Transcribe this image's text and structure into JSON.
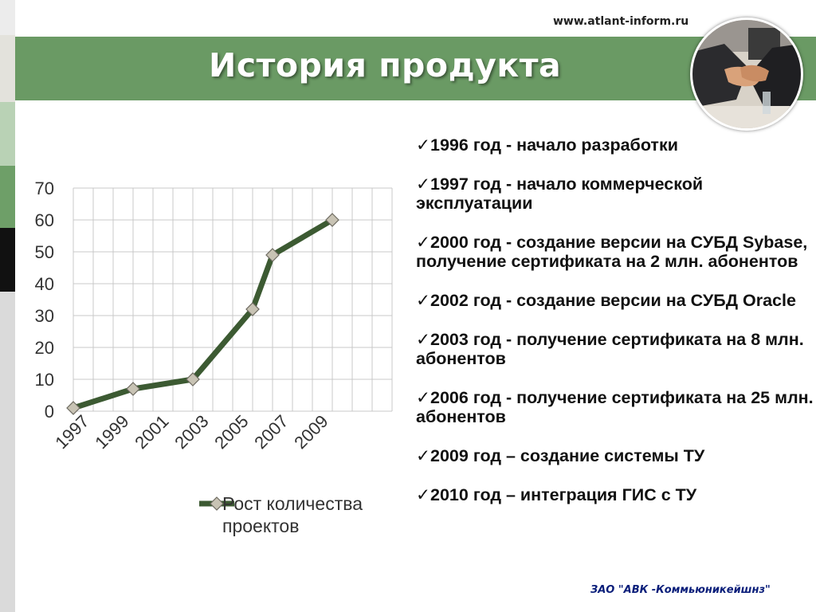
{
  "header": {
    "title": "История продукта",
    "site": "www.atlant-inform.ru"
  },
  "photo": {
    "icon": "handshake-photo"
  },
  "chart_data": {
    "type": "line",
    "x_ticks": [
      "1997",
      "1999",
      "2001",
      "2003",
      "2005",
      "2007",
      "2009"
    ],
    "y_ticks": [
      "0",
      "10",
      "20",
      "30",
      "40",
      "50",
      "60",
      "70"
    ],
    "ylim": [
      0,
      70
    ],
    "grid": true,
    "legend_position": "bottom",
    "series": [
      {
        "name": "Рост количества проектов",
        "points": [
          {
            "x": 1996,
            "y": 1
          },
          {
            "x": 1999,
            "y": 7
          },
          {
            "x": 2002,
            "y": 10
          },
          {
            "x": 2005,
            "y": 32
          },
          {
            "x": 2006,
            "y": 49
          },
          {
            "x": 2009,
            "y": 60
          }
        ]
      }
    ],
    "colors": {
      "line": "#3c5a32",
      "marker": "#c8c3b4",
      "grid": "#c8c8c8"
    }
  },
  "legend": {
    "line1": "Рост количества",
    "line2": "проектов"
  },
  "milestones": [
    "1996 год - начало разработки",
    "1997 год - начало коммерческой эксплуатации",
    "2000 год - создание версии на СУБД Sybase, получение сертификата на 2 млн. абонентов",
    "2002 год - создание версии на СУБД Oracle",
    "2003 год - получение сертификата на 8 млн. абонентов",
    "2006 год - получение сертификата на 25 млн. абонентов",
    "2009 год – создание системы ТУ",
    "2010 год – интеграция ГИС с ТУ"
  ],
  "footer": {
    "company": "ЗАО \"АВК -Коммьюникейшнз\""
  }
}
